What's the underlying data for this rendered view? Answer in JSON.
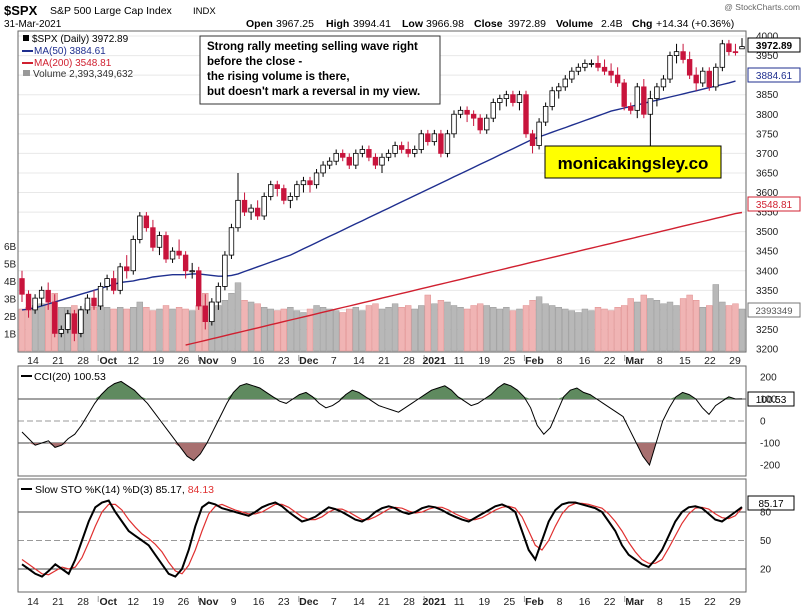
{
  "header": {
    "symbol": "$SPX",
    "name": "S&P 500 Large Cap Index",
    "exchange": "INDX",
    "date": "31-Mar-2021",
    "watermark": "@ StockCharts.com",
    "open_label": "Open",
    "open": "3967.25",
    "high_label": "High",
    "high": "3994.41",
    "low_label": "Low",
    "low": "3966.98",
    "close_label": "Close",
    "close": "3972.89",
    "volume_label": "Volume",
    "volume": "2.4B",
    "chg_label": "Chg",
    "chg": "+14.34 (+0.36%)"
  },
  "legend": {
    "price": "$SPX (Daily) 3972.89",
    "ma50": "MA(50) 3884.61",
    "ma200": "MA(200) 3548.81",
    "volume": "Volume 2,393,349,632"
  },
  "annotation": "Strong rally meeting selling wave right before the close - the rising volume is there, but doesn't mark a reversal in my view.",
  "brand": "monicakingsley.co",
  "colors": {
    "up": "#ffffff",
    "down": "#c8143c",
    "ma50": "#1f2f8f",
    "ma200": "#d02030",
    "vol_up": "#b8b8b8",
    "vol_down": "#f0b4b4",
    "cci_fill_pos": "#5f8a5f",
    "cci_fill_neg": "#a87070",
    "sto_k": "#000000",
    "sto_d": "#e03030",
    "brand_bg": "#ffff00"
  },
  "chart_data": {
    "type": "candlestick",
    "price_axis": {
      "min": 3200,
      "max": 4000,
      "ticks": [
        3200,
        3250,
        3300,
        3350,
        3400,
        3450,
        3500,
        3550,
        3600,
        3650,
        3700,
        3750,
        3800,
        3850,
        3900,
        3950,
        4000
      ]
    },
    "price_axis_labels": [
      "3200",
      "3250",
      "3300",
      "3350",
      "3400",
      "3450",
      "3500",
      "3550",
      "3600",
      "3650",
      "3700",
      "3750",
      "3800",
      "3850",
      "3900",
      "3950",
      "4000"
    ],
    "volume_axis_labels": [
      "1B",
      "2B",
      "3B",
      "4B",
      "5B",
      "6B"
    ],
    "last_price_label": "3972.89",
    "ma50_label": "3884.61",
    "ma200_label": "3548.81",
    "volume_label": "2393349",
    "x_labels": [
      "14",
      "21",
      "28",
      "Oct",
      "12",
      "19",
      "26",
      "Nov",
      "9",
      "16",
      "23",
      "Dec",
      "7",
      "14",
      "21",
      "28",
      "2021",
      "11",
      "19",
      "25",
      "Feb",
      "8",
      "16",
      "22",
      "Mar",
      "8",
      "15",
      "22",
      "29"
    ],
    "candles": [
      [
        3380,
        3400,
        3320,
        3340
      ],
      [
        3340,
        3350,
        3280,
        3300
      ],
      [
        3300,
        3340,
        3290,
        3330
      ],
      [
        3330,
        3360,
        3310,
        3350
      ],
      [
        3350,
        3370,
        3300,
        3320
      ],
      [
        3320,
        3340,
        3230,
        3240
      ],
      [
        3240,
        3260,
        3230,
        3250
      ],
      [
        3250,
        3300,
        3240,
        3290
      ],
      [
        3290,
        3300,
        3220,
        3240
      ],
      [
        3240,
        3310,
        3230,
        3300
      ],
      [
        3300,
        3340,
        3290,
        3330
      ],
      [
        3330,
        3350,
        3300,
        3310
      ],
      [
        3310,
        3370,
        3300,
        3360
      ],
      [
        3360,
        3390,
        3350,
        3380
      ],
      [
        3380,
        3400,
        3340,
        3350
      ],
      [
        3350,
        3420,
        3340,
        3410
      ],
      [
        3410,
        3440,
        3380,
        3400
      ],
      [
        3400,
        3490,
        3390,
        3480
      ],
      [
        3480,
        3550,
        3470,
        3540
      ],
      [
        3540,
        3550,
        3500,
        3510
      ],
      [
        3510,
        3530,
        3450,
        3460
      ],
      [
        3460,
        3500,
        3440,
        3490
      ],
      [
        3490,
        3500,
        3420,
        3430
      ],
      [
        3430,
        3460,
        3420,
        3450
      ],
      [
        3450,
        3480,
        3430,
        3440
      ],
      [
        3440,
        3450,
        3380,
        3400
      ],
      [
        3400,
        3420,
        3380,
        3400
      ],
      [
        3400,
        3410,
        3300,
        3310
      ],
      [
        3310,
        3340,
        3250,
        3270
      ],
      [
        3270,
        3330,
        3260,
        3320
      ],
      [
        3320,
        3370,
        3300,
        3360
      ],
      [
        3360,
        3450,
        3350,
        3440
      ],
      [
        3440,
        3520,
        3430,
        3510
      ],
      [
        3510,
        3650,
        3500,
        3580
      ],
      [
        3580,
        3600,
        3540,
        3550
      ],
      [
        3550,
        3570,
        3530,
        3560
      ],
      [
        3560,
        3580,
        3530,
        3540
      ],
      [
        3540,
        3600,
        3530,
        3590
      ],
      [
        3590,
        3630,
        3580,
        3620
      ],
      [
        3620,
        3630,
        3590,
        3610
      ],
      [
        3610,
        3620,
        3570,
        3580
      ],
      [
        3580,
        3600,
        3560,
        3590
      ],
      [
        3590,
        3630,
        3580,
        3620
      ],
      [
        3620,
        3640,
        3600,
        3630
      ],
      [
        3630,
        3640,
        3600,
        3620
      ],
      [
        3620,
        3660,
        3610,
        3650
      ],
      [
        3650,
        3680,
        3640,
        3670
      ],
      [
        3670,
        3690,
        3660,
        3680
      ],
      [
        3680,
        3710,
        3670,
        3700
      ],
      [
        3700,
        3710,
        3680,
        3690
      ],
      [
        3690,
        3700,
        3660,
        3670
      ],
      [
        3670,
        3710,
        3660,
        3700
      ],
      [
        3700,
        3720,
        3690,
        3710
      ],
      [
        3710,
        3720,
        3680,
        3690
      ],
      [
        3690,
        3700,
        3660,
        3670
      ],
      [
        3670,
        3700,
        3650,
        3690
      ],
      [
        3690,
        3710,
        3680,
        3700
      ],
      [
        3700,
        3730,
        3690,
        3720
      ],
      [
        3720,
        3730,
        3700,
        3710
      ],
      [
        3710,
        3730,
        3690,
        3700
      ],
      [
        3700,
        3720,
        3690,
        3710
      ],
      [
        3710,
        3760,
        3700,
        3750
      ],
      [
        3750,
        3760,
        3720,
        3730
      ],
      [
        3730,
        3760,
        3720,
        3750
      ],
      [
        3750,
        3760,
        3690,
        3700
      ],
      [
        3700,
        3760,
        3690,
        3750
      ],
      [
        3750,
        3810,
        3740,
        3800
      ],
      [
        3800,
        3820,
        3790,
        3810
      ],
      [
        3810,
        3820,
        3780,
        3800
      ],
      [
        3800,
        3810,
        3770,
        3790
      ],
      [
        3790,
        3800,
        3750,
        3760
      ],
      [
        3760,
        3800,
        3750,
        3790
      ],
      [
        3790,
        3840,
        3780,
        3830
      ],
      [
        3830,
        3850,
        3810,
        3840
      ],
      [
        3840,
        3860,
        3820,
        3850
      ],
      [
        3850,
        3860,
        3820,
        3830
      ],
      [
        3830,
        3860,
        3810,
        3850
      ],
      [
        3850,
        3860,
        3740,
        3750
      ],
      [
        3750,
        3760,
        3700,
        3720
      ],
      [
        3720,
        3790,
        3710,
        3780
      ],
      [
        3780,
        3830,
        3770,
        3820
      ],
      [
        3820,
        3870,
        3810,
        3860
      ],
      [
        3860,
        3880,
        3840,
        3870
      ],
      [
        3870,
        3900,
        3860,
        3890
      ],
      [
        3890,
        3920,
        3880,
        3910
      ],
      [
        3910,
        3930,
        3900,
        3920
      ],
      [
        3920,
        3940,
        3910,
        3930
      ],
      [
        3930,
        3940,
        3920,
        3930
      ],
      [
        3930,
        3950,
        3910,
        3920
      ],
      [
        3920,
        3940,
        3900,
        3910
      ],
      [
        3910,
        3930,
        3880,
        3900
      ],
      [
        3900,
        3920,
        3870,
        3880
      ],
      [
        3880,
        3890,
        3810,
        3820
      ],
      [
        3820,
        3830,
        3800,
        3810
      ],
      [
        3810,
        3880,
        3790,
        3870
      ],
      [
        3870,
        3890,
        3790,
        3800
      ],
      [
        3800,
        3860,
        3720,
        3840
      ],
      [
        3840,
        3880,
        3820,
        3870
      ],
      [
        3870,
        3900,
        3860,
        3890
      ],
      [
        3890,
        3960,
        3880,
        3950
      ],
      [
        3950,
        3980,
        3930,
        3960
      ],
      [
        3960,
        3980,
        3930,
        3940
      ],
      [
        3940,
        3960,
        3890,
        3900
      ],
      [
        3900,
        3920,
        3860,
        3880
      ],
      [
        3880,
        3920,
        3870,
        3910
      ],
      [
        3910,
        3920,
        3860,
        3870
      ],
      [
        3870,
        3930,
        3860,
        3920
      ],
      [
        3920,
        3990,
        3910,
        3980
      ],
      [
        3980,
        3990,
        3950,
        3960
      ],
      [
        3960,
        3980,
        3950,
        3958
      ],
      [
        3967.25,
        3994.41,
        3966.98,
        3972.89
      ]
    ],
    "ma50": [
      3300,
      3302,
      3305,
      3310,
      3315,
      3320,
      3325,
      3330,
      3335,
      3340,
      3345,
      3350,
      3355,
      3360,
      3365,
      3370,
      3372,
      3374,
      3378,
      3380,
      3384,
      3386,
      3388,
      3390,
      3390,
      3390,
      3392,
      3392,
      3390,
      3388,
      3386,
      3386,
      3388,
      3392,
      3398,
      3404,
      3410,
      3416,
      3422,
      3428,
      3434,
      3440,
      3448,
      3456,
      3464,
      3472,
      3480,
      3488,
      3496,
      3504,
      3512,
      3520,
      3528,
      3536,
      3544,
      3552,
      3560,
      3568,
      3576,
      3584,
      3592,
      3600,
      3608,
      3616,
      3624,
      3632,
      3640,
      3648,
      3656,
      3664,
      3672,
      3680,
      3688,
      3696,
      3704,
      3712,
      3720,
      3728,
      3736,
      3742,
      3748,
      3754,
      3760,
      3766,
      3772,
      3778,
      3784,
      3790,
      3796,
      3802,
      3808,
      3812,
      3816,
      3820,
      3824,
      3828,
      3832,
      3836,
      3840,
      3844,
      3848,
      3852,
      3856,
      3860,
      3864,
      3868,
      3872,
      3876,
      3880,
      3884.61
    ],
    "ma200": [
      3210,
      3214,
      3218,
      3222,
      3226,
      3230,
      3234,
      3238,
      3242,
      3246,
      3250,
      3254,
      3258,
      3262,
      3266,
      3270,
      3274,
      3278,
      3282,
      3286,
      3290,
      3294,
      3298,
      3302,
      3306,
      3310,
      3314,
      3318,
      3322,
      3326,
      3330,
      3334,
      3338,
      3342,
      3346,
      3350,
      3354,
      3358,
      3362,
      3366,
      3370,
      3374,
      3378,
      3382,
      3386,
      3390,
      3394,
      3398,
      3402,
      3406,
      3410,
      3414,
      3418,
      3422,
      3426,
      3430,
      3434,
      3438,
      3442,
      3446,
      3450,
      3454,
      3458,
      3462,
      3466,
      3470,
      3474,
      3478,
      3482,
      3486,
      3490,
      3494,
      3498,
      3502,
      3506,
      3510,
      3514,
      3518,
      3522,
      3526,
      3530,
      3534,
      3538,
      3542,
      3546,
      3548.81
    ],
    "volume": [
      2.4,
      2.5,
      2.6,
      2.7,
      2.7,
      3.3,
      2.5,
      2.5,
      2.6,
      2.4,
      2.7,
      2.5,
      2.6,
      2.5,
      2.4,
      2.5,
      2.4,
      2.5,
      2.8,
      2.5,
      2.3,
      2.4,
      2.6,
      2.4,
      2.5,
      2.4,
      2.3,
      2.6,
      3.3,
      2.8,
      2.6,
      2.9,
      3.3,
      3.9,
      2.9,
      2.8,
      2.7,
      2.5,
      2.4,
      2.3,
      2.4,
      2.5,
      2.3,
      2.2,
      2.4,
      2.6,
      2.5,
      2.4,
      2.3,
      2.2,
      2.4,
      2.5,
      2.3,
      2.6,
      2.7,
      2.4,
      2.5,
      2.7,
      2.5,
      2.6,
      2.4,
      2.6,
      3.2,
      2.7,
      2.9,
      2.8,
      2.6,
      2.5,
      2.4,
      2.6,
      2.7,
      2.6,
      2.5,
      2.4,
      2.5,
      2.3,
      2.4,
      2.6,
      2.9,
      3.1,
      2.7,
      2.6,
      2.5,
      2.4,
      2.3,
      2.2,
      2.4,
      2.3,
      2.5,
      2.4,
      2.3,
      2.5,
      2.6,
      3.0,
      2.8,
      3.2,
      3.0,
      2.9,
      2.7,
      2.8,
      2.6,
      3.0,
      3.2,
      2.9,
      2.5,
      2.6,
      3.8,
      2.8,
      2.6,
      2.7,
      2.4
    ],
    "cci": {
      "label": "CCI(20) 100.53",
      "axis_labels": [
        "200",
        "100",
        "0",
        "-100",
        "-200"
      ],
      "last_label": "100.53",
      "values": [
        -50,
        -80,
        -110,
        -100,
        -90,
        -120,
        -110,
        -80,
        -60,
        -20,
        30,
        80,
        120,
        150,
        170,
        180,
        160,
        140,
        110,
        80,
        40,
        0,
        -40,
        -80,
        -120,
        -160,
        -180,
        -150,
        -100,
        -40,
        20,
        80,
        130,
        160,
        170,
        160,
        150,
        130,
        110,
        90,
        80,
        100,
        120,
        130,
        110,
        80,
        60,
        70,
        90,
        120,
        140,
        130,
        110,
        90,
        70,
        60,
        50,
        40,
        60,
        80,
        100,
        120,
        140,
        150,
        160,
        140,
        110,
        90,
        70,
        80,
        100,
        120,
        150,
        170,
        160,
        140,
        110,
        60,
        -20,
        -60,
        -30,
        40,
        110,
        140,
        150,
        130,
        120,
        100,
        80,
        60,
        40,
        20,
        -40,
        -100,
        -160,
        -200,
        -100,
        0,
        60,
        110,
        130,
        120,
        100,
        60,
        30,
        70,
        90,
        110,
        100,
        100.53
      ]
    },
    "sto": {
      "label": "Slow STO %K(14) %D(3)",
      "k_value": "85.17",
      "d_value": "84.13",
      "axis_labels": [
        "80",
        "50",
        "20"
      ],
      "last_label": "85.17",
      "k": [
        25,
        20,
        15,
        12,
        18,
        25,
        20,
        15,
        30,
        50,
        70,
        85,
        90,
        92,
        80,
        70,
        60,
        55,
        50,
        45,
        35,
        25,
        15,
        12,
        20,
        40,
        65,
        85,
        90,
        88,
        84,
        82,
        80,
        78,
        76,
        80,
        85,
        88,
        90,
        86,
        80,
        75,
        70,
        72,
        75,
        80,
        85,
        83,
        80,
        76,
        72,
        70,
        74,
        80,
        84,
        86,
        84,
        80,
        78,
        80,
        84,
        86,
        85,
        82,
        78,
        75,
        72,
        70,
        74,
        78,
        82,
        86,
        88,
        85,
        80,
        60,
        40,
        30,
        50,
        70,
        82,
        88,
        90,
        90,
        88,
        86,
        84,
        80,
        70,
        60,
        45,
        35,
        30,
        25,
        22,
        30,
        40,
        55,
        70,
        80,
        85,
        86,
        84,
        78,
        72,
        70,
        75,
        80,
        85.17
      ],
      "d": [
        30,
        25,
        20,
        15,
        14,
        18,
        22,
        20,
        22,
        32,
        48,
        65,
        80,
        88,
        88,
        82,
        72,
        64,
        57,
        52,
        46,
        38,
        27,
        18,
        15,
        24,
        40,
        60,
        78,
        86,
        88,
        85,
        82,
        80,
        78,
        78,
        80,
        84,
        88,
        88,
        85,
        80,
        75,
        72,
        72,
        75,
        80,
        83,
        83,
        80,
        76,
        72,
        72,
        75,
        79,
        83,
        85,
        84,
        81,
        79,
        80,
        83,
        85,
        85,
        82,
        78,
        75,
        72,
        72,
        74,
        78,
        82,
        85,
        86,
        84,
        75,
        60,
        45,
        40,
        50,
        65,
        78,
        86,
        89,
        89,
        88,
        86,
        84,
        78,
        70,
        60,
        48,
        38,
        30,
        26,
        26,
        30,
        42,
        55,
        68,
        78,
        84,
        85,
        83,
        78,
        74,
        73,
        76,
        84.13
      ]
    }
  }
}
